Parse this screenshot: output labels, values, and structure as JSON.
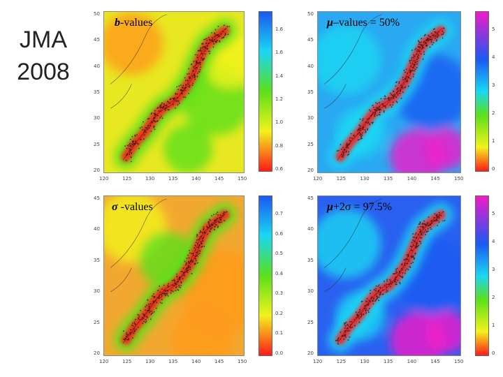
{
  "heading": {
    "line1": "JMA",
    "line2": "2008"
  },
  "panels": [
    {
      "id": "b-values",
      "title_symbol": "b",
      "title_text": "-values",
      "lat_ticks": [
        "50",
        "45",
        "40",
        "35",
        "30",
        "25",
        "20"
      ],
      "lon_ticks": [
        "120",
        "125",
        "130",
        "135",
        "140",
        "145",
        "150"
      ],
      "colorbar_ticks": [
        "1.6",
        "1.6",
        "1.4",
        "1.2",
        "1.0",
        "0.8",
        "0.6"
      ],
      "palette": "rainbow-high-blue",
      "base_color": "#e8e820"
    },
    {
      "id": "mu-values",
      "title_symbol": "μ",
      "title_text": "–values = 50%",
      "lat_ticks": [
        "50",
        "45",
        "40",
        "35",
        "30",
        "25",
        "20"
      ],
      "lon_ticks": [
        "120",
        "125",
        "130",
        "135",
        "140",
        "145",
        "150"
      ],
      "colorbar_ticks": [
        "5",
        "4",
        "3",
        "2",
        "1",
        "0"
      ],
      "palette": "rainbow-magenta-top",
      "base_color": "#2aa8f2"
    },
    {
      "id": "sigma-values",
      "title_symbol": "σ",
      "title_text": " -values",
      "lat_ticks": [
        "45",
        "40",
        "35",
        "30",
        "25",
        "20"
      ],
      "lon_ticks": [
        "120",
        "125",
        "130",
        "135",
        "140",
        "145",
        "150"
      ],
      "colorbar_ticks": [
        "0.7",
        "0.6",
        "0.5",
        "0.4",
        "0.3",
        "0.2",
        "0.1",
        "0.0"
      ],
      "palette": "rainbow-high-blue",
      "base_color": "#f2a830"
    },
    {
      "id": "mu-2sigma",
      "title_symbol": "μ",
      "title_text": "+2σ = 97.5%",
      "lat_ticks": [
        "45",
        "40",
        "35",
        "30",
        "25",
        "20"
      ],
      "lon_ticks": [
        "120",
        "125",
        "130",
        "135",
        "140",
        "145",
        "150"
      ],
      "colorbar_ticks": [
        "5",
        "4",
        "3",
        "2",
        "1",
        "0"
      ],
      "palette": "rainbow-magenta-top",
      "base_color": "#2a60f0"
    }
  ],
  "colors": {
    "red": "#ff1a1a",
    "orange": "#ff9a1a",
    "yellow": "#f2f21a",
    "green": "#5ae01a",
    "cyan": "#1ad7f2",
    "blue": "#1a5af2",
    "magenta": "#f21ac8"
  }
}
